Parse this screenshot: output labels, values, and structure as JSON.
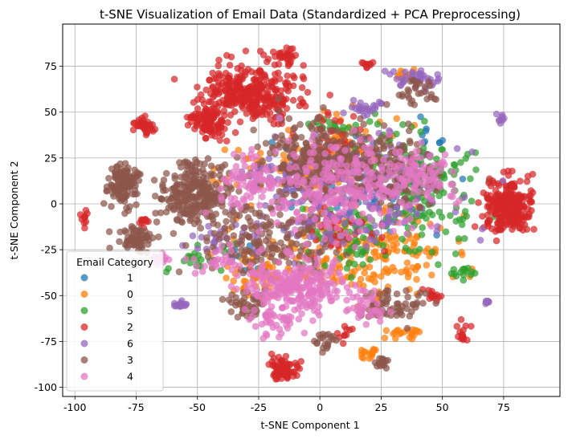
{
  "chart_data": {
    "type": "scatter",
    "title": "t-SNE Visualization of Email Data (Standardized + PCA Preprocessing)",
    "xlabel": "t-SNE Component 1",
    "ylabel": "t-SNE Component 2",
    "xlim": [
      -105,
      98
    ],
    "ylim": [
      -105,
      98
    ],
    "xticks": [
      -100,
      -75,
      -50,
      -25,
      0,
      25,
      50,
      75
    ],
    "yticks": [
      -100,
      -75,
      -50,
      -25,
      0,
      25,
      50,
      75
    ],
    "grid": true,
    "legend": {
      "title": "Email Category",
      "position": "lower-left"
    },
    "series": [
      {
        "name": "1",
        "color": "#1f77b4",
        "clusters": [
          {
            "cx": 10,
            "cy": 5,
            "rx": 40,
            "ry": 35,
            "n": 60
          },
          {
            "cx": -30,
            "cy": -30,
            "rx": 12,
            "ry": 10,
            "n": 10
          },
          {
            "cx": 45,
            "cy": 35,
            "rx": 8,
            "ry": 6,
            "n": 8
          }
        ]
      },
      {
        "name": "0",
        "color": "#ff7f0e",
        "clusters": [
          {
            "cx": 15,
            "cy": -25,
            "rx": 40,
            "ry": 25,
            "n": 230
          },
          {
            "cx": -25,
            "cy": -40,
            "rx": 15,
            "ry": 15,
            "n": 60
          },
          {
            "cx": 10,
            "cy": 30,
            "rx": 25,
            "ry": 20,
            "n": 60
          },
          {
            "cx": 35,
            "cy": -70,
            "rx": 8,
            "ry": 3,
            "n": 20
          },
          {
            "cx": 20,
            "cy": -82,
            "rx": 4,
            "ry": 3,
            "n": 15
          },
          {
            "cx": 35,
            "cy": 70,
            "rx": 6,
            "ry": 3,
            "n": 10
          },
          {
            "cx": -10,
            "cy": 20,
            "rx": 35,
            "ry": 12,
            "n": 60
          }
        ]
      },
      {
        "name": "5",
        "color": "#2ca02c",
        "clusters": [
          {
            "cx": 40,
            "cy": 10,
            "rx": 25,
            "ry": 30,
            "n": 180
          },
          {
            "cx": 15,
            "cy": -20,
            "rx": 25,
            "ry": 20,
            "n": 70
          },
          {
            "cx": 58,
            "cy": -38,
            "rx": 6,
            "ry": 4,
            "n": 15
          },
          {
            "cx": 5,
            "cy": 42,
            "rx": 12,
            "ry": 6,
            "n": 20
          },
          {
            "cx": -48,
            "cy": -30,
            "rx": 12,
            "ry": 12,
            "n": 25
          }
        ]
      },
      {
        "name": "2",
        "color": "#d62728",
        "clusters": [
          {
            "cx": -28,
            "cy": 60,
            "rx": 20,
            "ry": 15,
            "n": 320
          },
          {
            "cx": -45,
            "cy": 45,
            "rx": 8,
            "ry": 10,
            "n": 100
          },
          {
            "cx": 77,
            "cy": -2,
            "rx": 10,
            "ry": 16,
            "n": 260
          },
          {
            "cx": -15,
            "cy": -90,
            "rx": 6,
            "ry": 5,
            "n": 80
          },
          {
            "cx": -72,
            "cy": 42,
            "rx": 4,
            "ry": 5,
            "n": 40
          },
          {
            "cx": -15,
            "cy": 80,
            "rx": 7,
            "ry": 5,
            "n": 30
          },
          {
            "cx": 46,
            "cy": -50,
            "rx": 3,
            "ry": 3,
            "n": 15
          },
          {
            "cx": 58,
            "cy": -70,
            "rx": 3,
            "ry": 5,
            "n": 15
          },
          {
            "cx": 20,
            "cy": 76,
            "rx": 3,
            "ry": 2,
            "n": 10
          },
          {
            "cx": -96,
            "cy": -6,
            "rx": 2,
            "ry": 5,
            "n": 10
          },
          {
            "cx": -72,
            "cy": -10,
            "rx": 3,
            "ry": 4,
            "n": 10
          },
          {
            "cx": 5,
            "cy": 35,
            "rx": 10,
            "ry": 15,
            "n": 30
          },
          {
            "cx": 10,
            "cy": -70,
            "rx": 4,
            "ry": 5,
            "n": 10
          },
          {
            "cx": 8,
            "cy": -15,
            "rx": 20,
            "ry": 15,
            "n": 40
          }
        ]
      },
      {
        "name": "6",
        "color": "#9467bd",
        "clusters": [
          {
            "cx": 20,
            "cy": 10,
            "rx": 35,
            "ry": 30,
            "n": 190
          },
          {
            "cx": 40,
            "cy": 68,
            "rx": 10,
            "ry": 5,
            "n": 40
          },
          {
            "cx": 20,
            "cy": 52,
            "rx": 6,
            "ry": 5,
            "n": 25
          },
          {
            "cx": -57,
            "cy": -55,
            "rx": 4,
            "ry": 2,
            "n": 15
          },
          {
            "cx": 74,
            "cy": 47,
            "rx": 2,
            "ry": 2,
            "n": 8
          },
          {
            "cx": 68,
            "cy": -53,
            "rx": 2,
            "ry": 2,
            "n": 8
          },
          {
            "cx": 0,
            "cy": -15,
            "rx": 30,
            "ry": 18,
            "n": 50
          },
          {
            "cx": -40,
            "cy": -20,
            "rx": 12,
            "ry": 10,
            "n": 25
          },
          {
            "cx": -15,
            "cy": 15,
            "rx": 20,
            "ry": 10,
            "n": 40
          }
        ]
      },
      {
        "name": "3",
        "color": "#8c564b",
        "clusters": [
          {
            "cx": -80,
            "cy": 10,
            "rx": 6,
            "ry": 10,
            "n": 130
          },
          {
            "cx": -50,
            "cy": 5,
            "rx": 15,
            "ry": 18,
            "n": 260
          },
          {
            "cx": -3,
            "cy": 25,
            "rx": 18,
            "ry": 20,
            "n": 220
          },
          {
            "cx": 25,
            "cy": 20,
            "rx": 25,
            "ry": 20,
            "n": 160
          },
          {
            "cx": -75,
            "cy": -20,
            "rx": 8,
            "ry": 6,
            "n": 60
          },
          {
            "cx": -20,
            "cy": -20,
            "rx": 25,
            "ry": 20,
            "n": 150
          },
          {
            "cx": 30,
            "cy": -55,
            "rx": 15,
            "ry": 12,
            "n": 60
          },
          {
            "cx": 40,
            "cy": 60,
            "rx": 10,
            "ry": 8,
            "n": 30
          },
          {
            "cx": 25,
            "cy": -87,
            "rx": 3,
            "ry": 4,
            "n": 15
          },
          {
            "cx": 2,
            "cy": -75,
            "rx": 4,
            "ry": 6,
            "n": 20
          },
          {
            "cx": -30,
            "cy": -55,
            "rx": 10,
            "ry": 8,
            "n": 40
          }
        ]
      },
      {
        "name": "4",
        "color": "#e377c2",
        "clusters": [
          {
            "cx": -10,
            "cy": -45,
            "rx": 20,
            "ry": 15,
            "n": 240
          },
          {
            "cx": 10,
            "cy": 10,
            "rx": 35,
            "ry": 25,
            "n": 260
          },
          {
            "cx": 40,
            "cy": 15,
            "rx": 15,
            "ry": 15,
            "n": 80
          },
          {
            "cx": -30,
            "cy": 10,
            "rx": 15,
            "ry": 15,
            "n": 70
          },
          {
            "cx": -20,
            "cy": -65,
            "rx": 10,
            "ry": 8,
            "n": 40
          },
          {
            "cx": 20,
            "cy": -55,
            "rx": 10,
            "ry": 10,
            "n": 40
          },
          {
            "cx": -40,
            "cy": -30,
            "rx": 10,
            "ry": 8,
            "n": 30
          },
          {
            "cx": -65,
            "cy": -30,
            "rx": 5,
            "ry": 4,
            "n": 15
          }
        ]
      }
    ]
  }
}
